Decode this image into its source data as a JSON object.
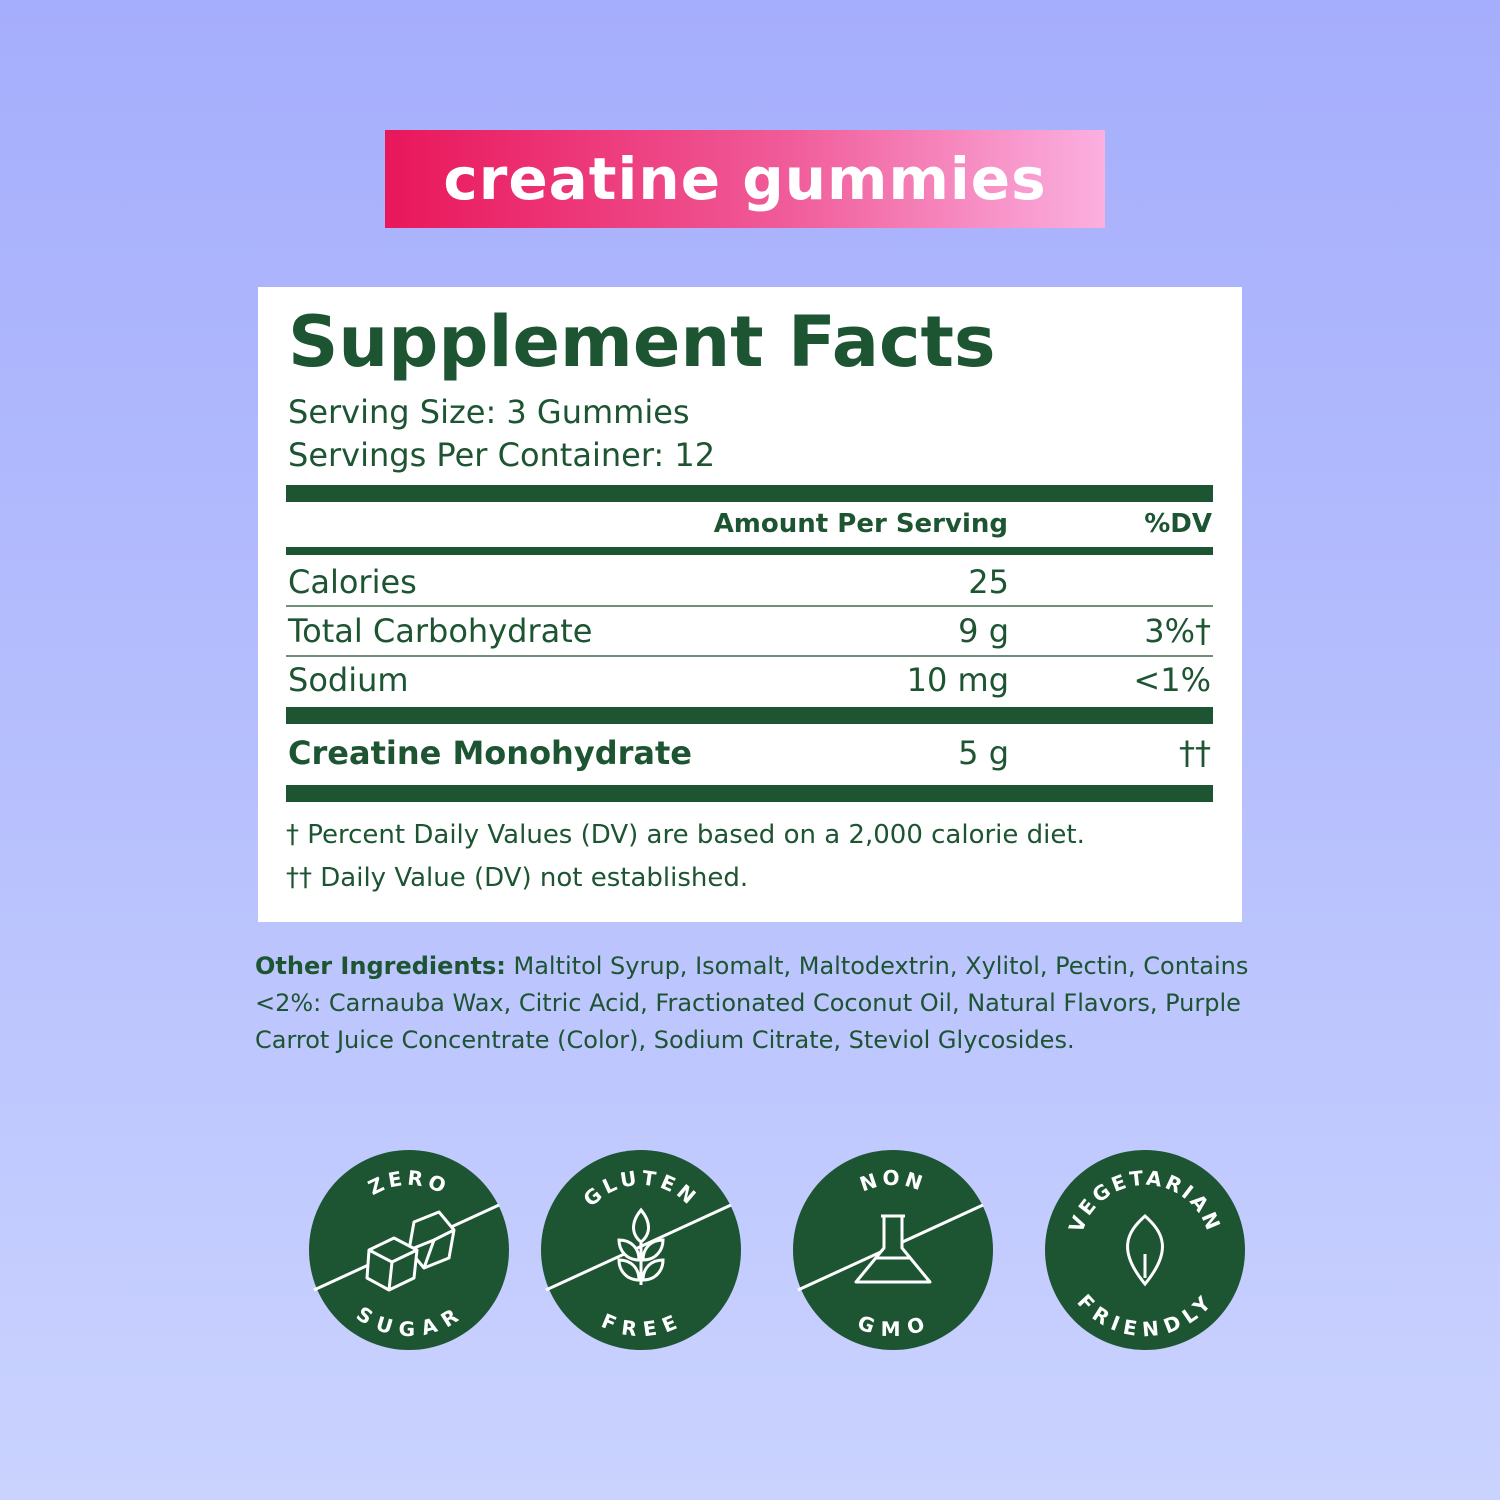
{
  "banner": {
    "text": "creatine gummies",
    "gradient": [
      "#e9165a",
      "#fbb0e0"
    ]
  },
  "facts": {
    "title": "Supplement Facts",
    "serving_size": "Serving Size: 3 Gummies",
    "servings_per_container": "Servings Per Container: 12",
    "header_amount": "Amount Per Serving",
    "header_dv": "%DV",
    "rows": [
      {
        "name": "Calories",
        "amount": "25",
        "dv": ""
      },
      {
        "name": "Total Carbohydrate",
        "amount": "9 g",
        "dv": "3%†"
      },
      {
        "name": "Sodium",
        "amount": "10 mg",
        "dv": "<1%"
      },
      {
        "name": "Creatine Monohydrate",
        "amount": "5 g",
        "dv": "††"
      }
    ],
    "footnote1": "† Percent Daily Values (DV) are based on a 2,000 calorie diet.",
    "footnote2": "†† Daily Value (DV) not established."
  },
  "ingredients": {
    "label": "Other Ingredients:",
    "text": " Maltitol Syrup, Isomalt, Maltodextrin, Xylitol, Pectin, Contains <2%: Carnauba Wax, Citric Acid, Fractionated Coconut Oil, Natural Flavors, Purple Carrot Juice Concentrate (Color), Sodium Citrate, Steviol Glycosides."
  },
  "badges": [
    {
      "top": "ZERO",
      "bottom": "SUGAR",
      "icon": "sugar-cubes-icon"
    },
    {
      "top": "GLUTEN",
      "bottom": "FREE",
      "icon": "wheat-icon"
    },
    {
      "top": "NON",
      "bottom": "GMO",
      "icon": "flask-icon"
    },
    {
      "top": "VEGETARIAN",
      "bottom": "FRIENDLY",
      "icon": "leaf-icon"
    }
  ],
  "colors": {
    "green": "#1d5432",
    "background": "#a5aefc"
  }
}
